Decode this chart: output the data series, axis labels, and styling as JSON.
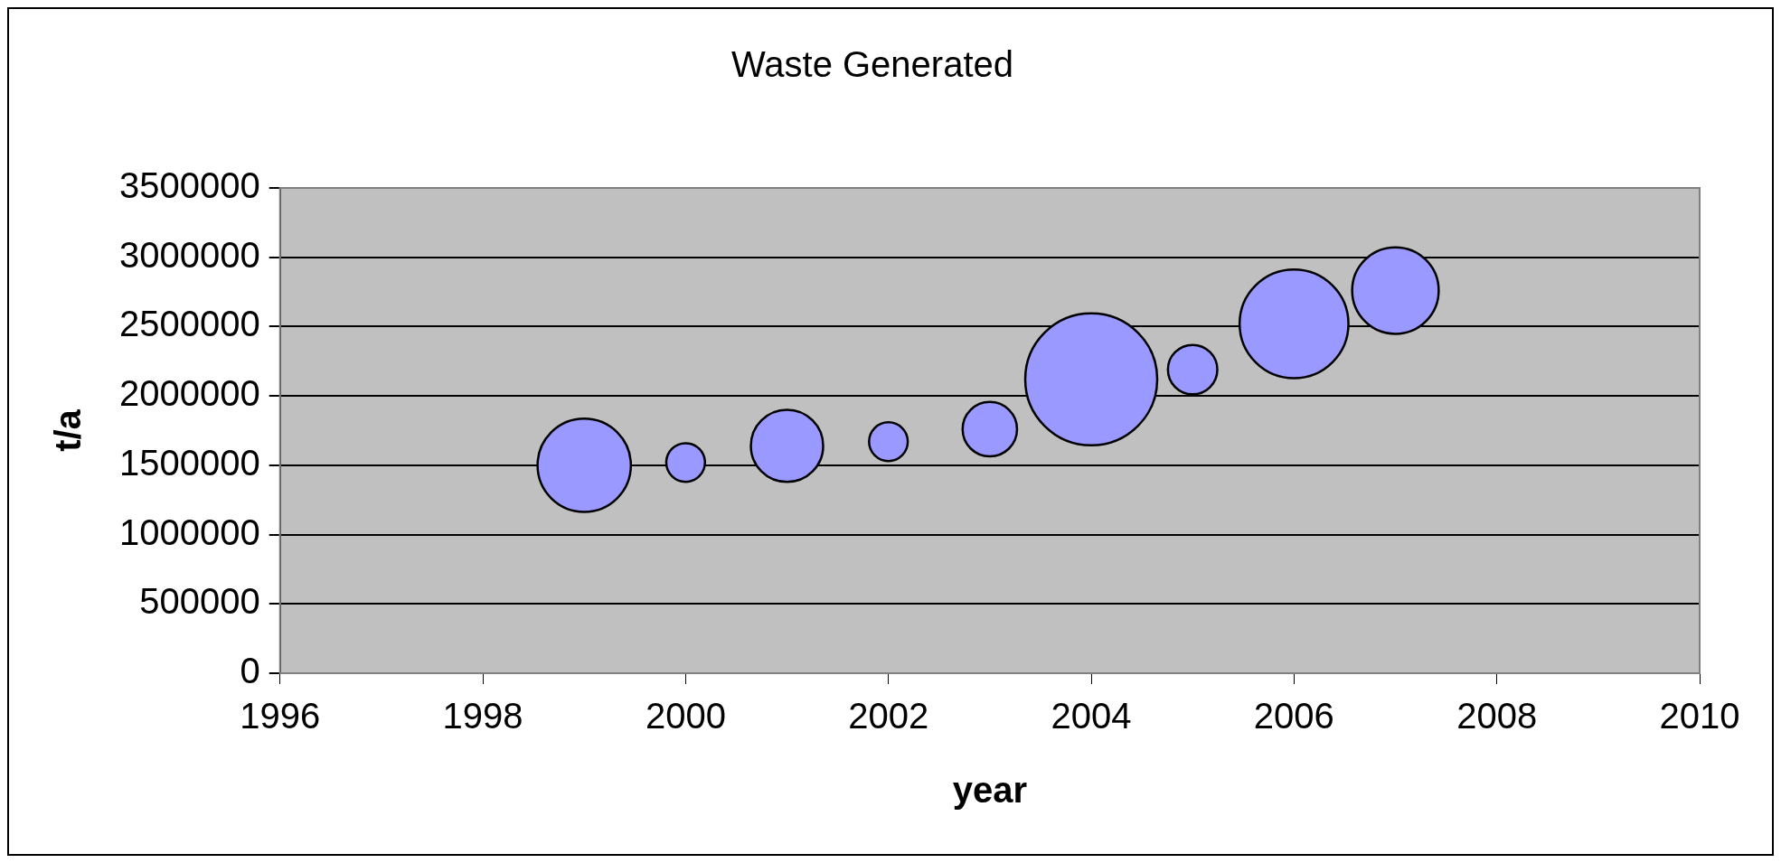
{
  "chart_data": {
    "type": "bubble",
    "title": "Waste Generated",
    "xlabel": "year",
    "ylabel": "t/a",
    "x": [
      1999,
      2000,
      2001,
      2002,
      2003,
      2004,
      2005,
      2006,
      2007
    ],
    "values": [
      1500000,
      1520000,
      1640000,
      1670000,
      1760000,
      2120000,
      2190000,
      2520000,
      2760000
    ],
    "sizes": [
      0.5,
      0.086,
      0.3,
      0.086,
      0.17,
      1,
      0.14,
      0.68,
      0.43
    ],
    "color": "#9999ff",
    "xlim": [
      1996,
      2010
    ],
    "xticks": [
      1996,
      1998,
      2000,
      2002,
      2004,
      2006,
      2008,
      2010
    ],
    "ylim": [
      0,
      3500000
    ],
    "yticks": [
      0,
      500000,
      1000000,
      1500000,
      2000000,
      2500000,
      3000000,
      3500000
    ],
    "grid": "y",
    "legend": false
  }
}
